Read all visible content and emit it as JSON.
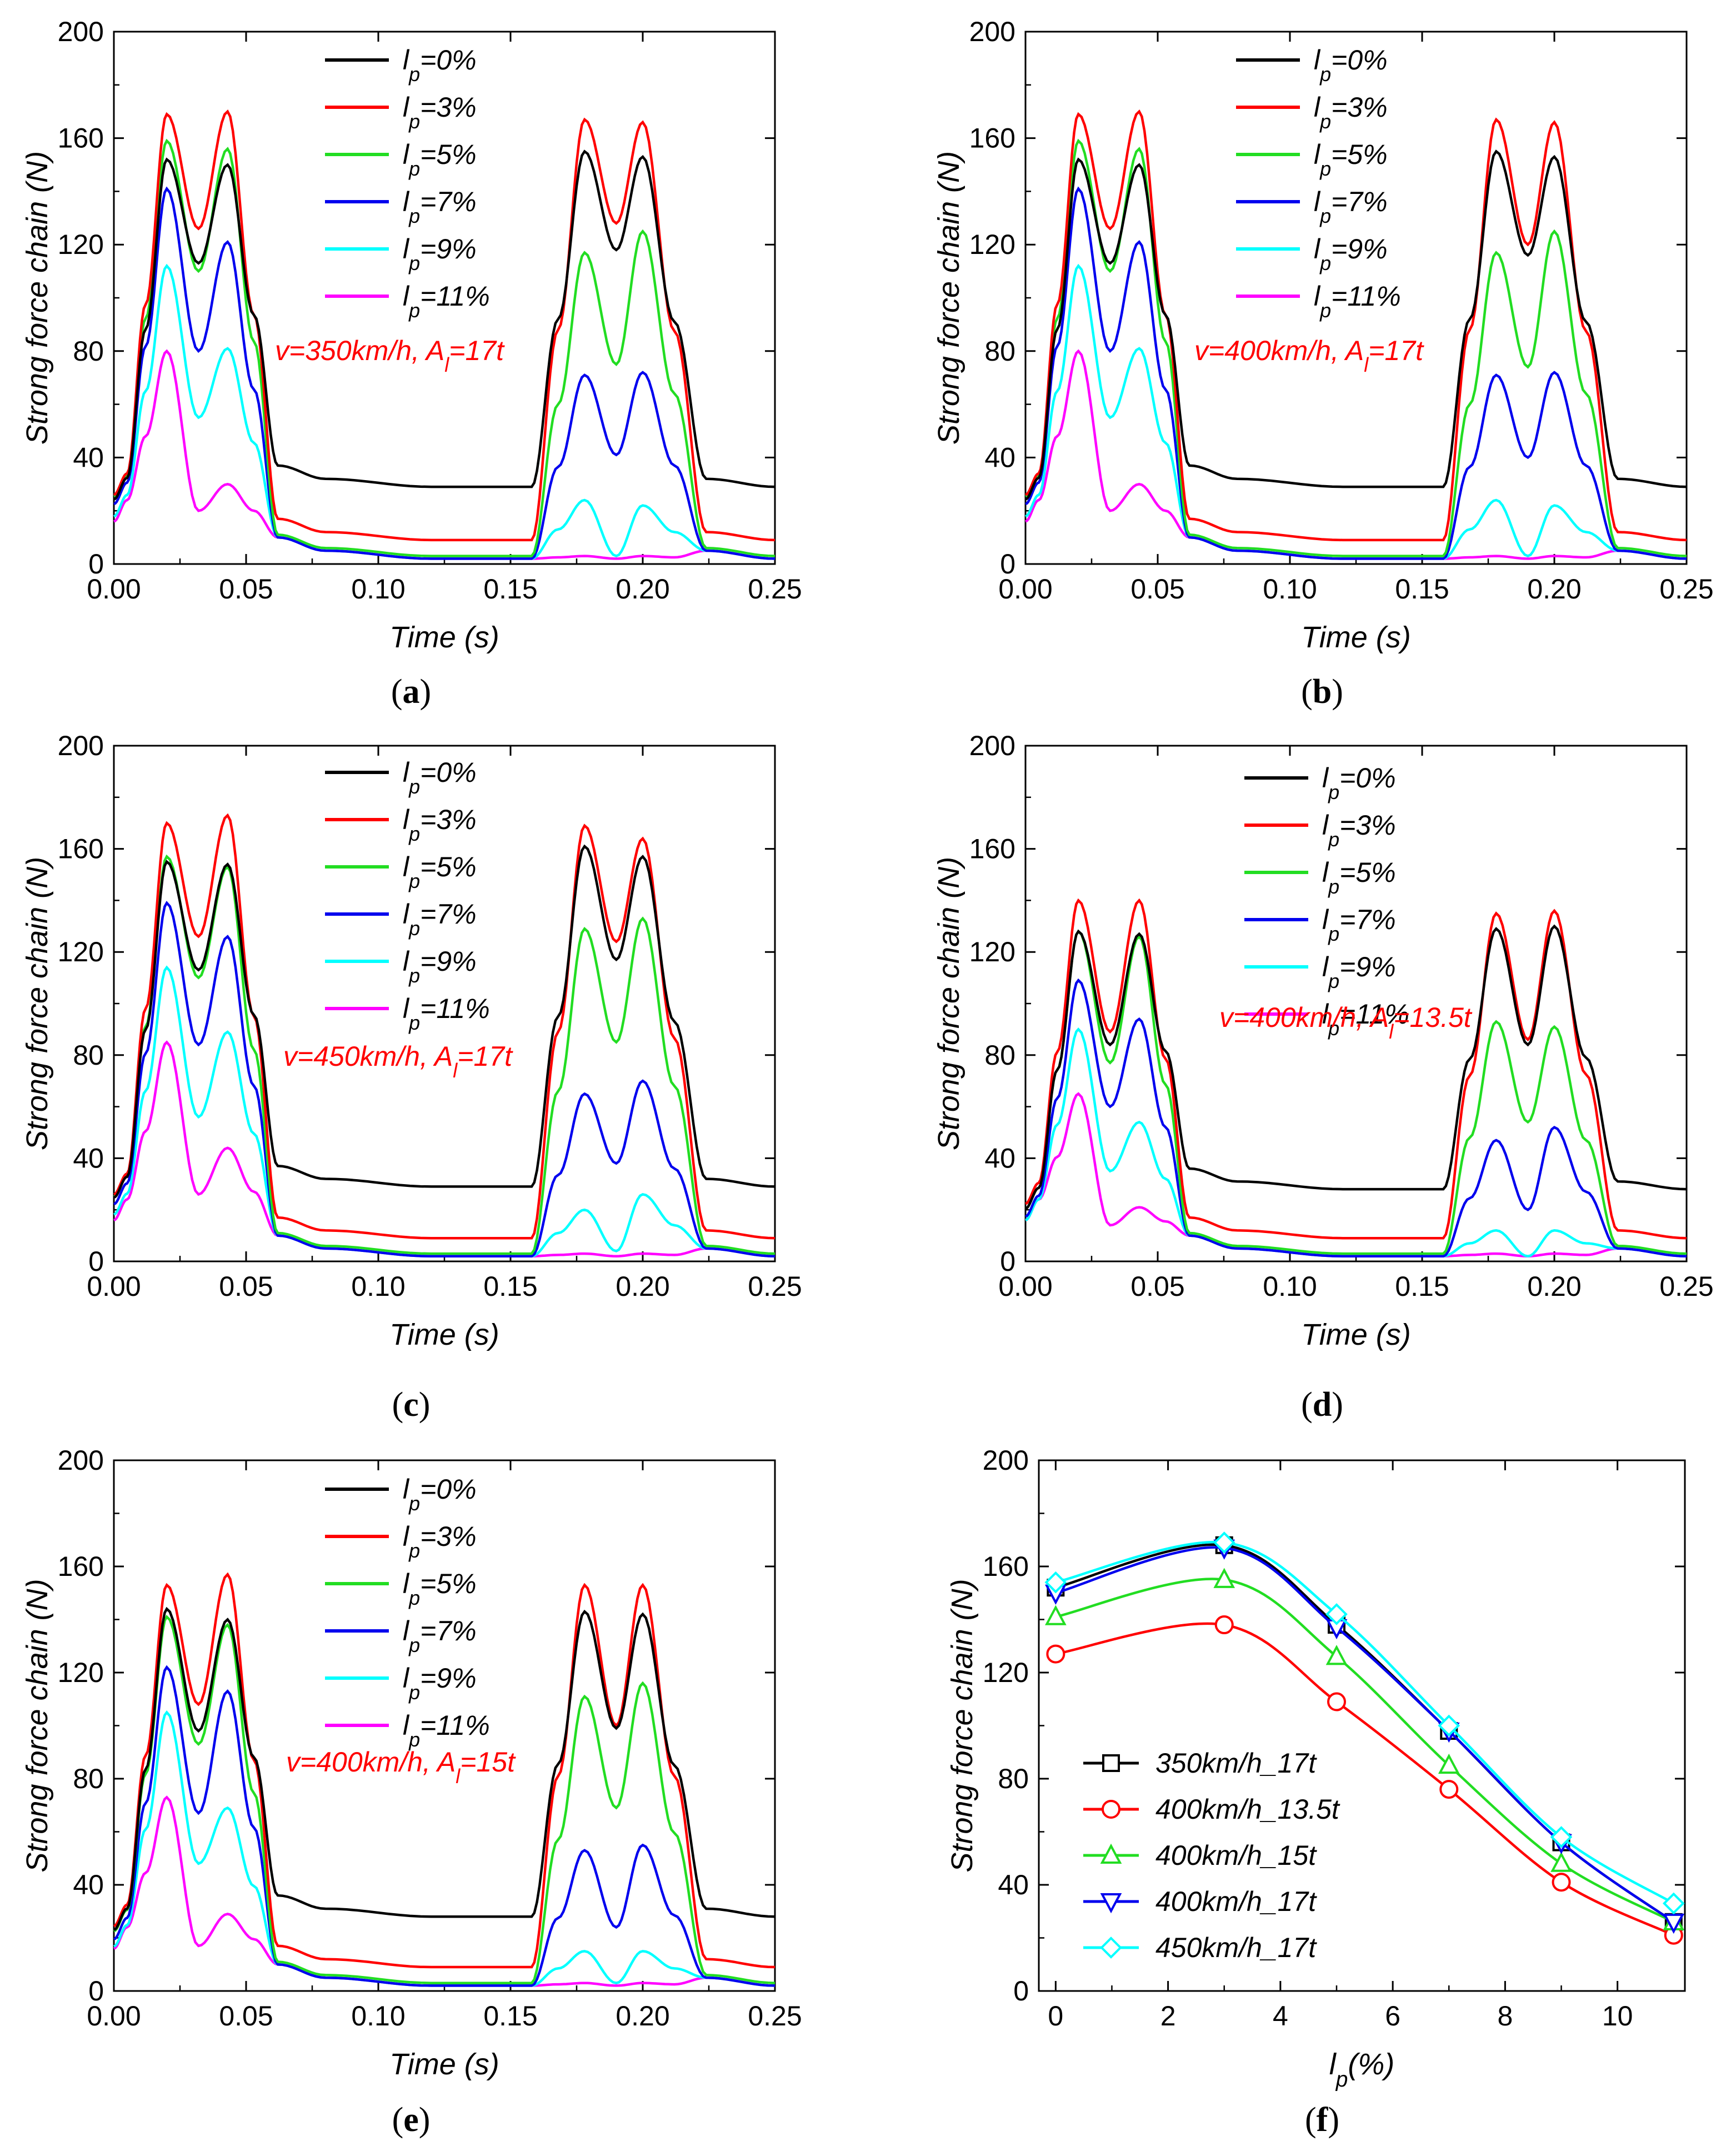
{
  "colors": {
    "lp0": "#000000",
    "lp3": "#ff0000",
    "lp5": "#22dd22",
    "lp7": "#0000ee",
    "lp9": "#00ffff",
    "lp11": "#ff00ff",
    "annotation": "#ff0000"
  },
  "chart_data": [
    {
      "id": "a",
      "panel_label": "(a)",
      "type": "line",
      "xlabel": "Time (s)",
      "ylabel": "Strong force chain (N)",
      "xlim": [
        0,
        0.25
      ],
      "ylim": [
        0,
        200
      ],
      "xticks": [
        "0.00",
        "0.05",
        "0.10",
        "0.15",
        "0.20",
        "0.25"
      ],
      "yticks": [
        "0",
        "40",
        "80",
        "120",
        "160",
        "200"
      ],
      "annotation": "v=350km/h, A_l=17t",
      "legend_position": "top-center",
      "series": [
        {
          "name": "l_p=0%",
          "peaks": [
            152,
            150,
            155,
            153
          ],
          "valleys": [
            113,
            118
          ],
          "tail": 29
        },
        {
          "name": "l_p=3%",
          "peaks": [
            169,
            170,
            167,
            166
          ],
          "valleys": [
            126,
            128
          ],
          "tail": 9
        },
        {
          "name": "l_p=5%",
          "peaks": [
            159,
            156,
            117,
            125
          ],
          "valleys": [
            110,
            75
          ],
          "tail": 3
        },
        {
          "name": "l_p=7%",
          "peaks": [
            141,
            121,
            71,
            72
          ],
          "valleys": [
            80,
            41
          ],
          "tail": 2
        },
        {
          "name": "l_p=9%",
          "peaks": [
            112,
            81,
            24,
            22
          ],
          "valleys": [
            55,
            3
          ],
          "tail": 2
        },
        {
          "name": "l_p=11%",
          "peaks": [
            80,
            30,
            3,
            3
          ],
          "valleys": [
            20,
            2
          ],
          "tail": 2
        }
      ]
    },
    {
      "id": "b",
      "panel_label": "(b)",
      "type": "line",
      "xlabel": "Time (s)",
      "ylabel": "Strong force chain (N)",
      "xlim": [
        0,
        0.25
      ],
      "ylim": [
        0,
        200
      ],
      "xticks": [
        "0.00",
        "0.05",
        "0.10",
        "0.15",
        "0.20",
        "0.25"
      ],
      "yticks": [
        "0",
        "40",
        "80",
        "120",
        "160",
        "200"
      ],
      "annotation": "v=400km/h, A_l=17t",
      "legend_position": "top-center",
      "series": [
        {
          "name": "l_p=0%",
          "peaks": [
            152,
            150,
            155,
            153
          ],
          "valleys": [
            113,
            116
          ],
          "tail": 29
        },
        {
          "name": "l_p=3%",
          "peaks": [
            169,
            170,
            167,
            166
          ],
          "valleys": [
            126,
            120
          ],
          "tail": 9
        },
        {
          "name": "l_p=5%",
          "peaks": [
            159,
            156,
            117,
            125
          ],
          "valleys": [
            110,
            74
          ],
          "tail": 3
        },
        {
          "name": "l_p=7%",
          "peaks": [
            141,
            121,
            71,
            72
          ],
          "valleys": [
            80,
            40
          ],
          "tail": 2
        },
        {
          "name": "l_p=9%",
          "peaks": [
            112,
            81,
            24,
            22
          ],
          "valleys": [
            55,
            3
          ],
          "tail": 2
        },
        {
          "name": "l_p=11%",
          "peaks": [
            80,
            30,
            3,
            3
          ],
          "valleys": [
            20,
            2
          ],
          "tail": 2
        }
      ]
    },
    {
      "id": "c",
      "panel_label": "(c)",
      "type": "line",
      "xlabel": "Time (s)",
      "ylabel": "Strong force chain (N)",
      "xlim": [
        0,
        0.25
      ],
      "ylim": [
        0,
        200
      ],
      "xticks": [
        "0.00",
        "0.05",
        "0.10",
        "0.15",
        "0.20",
        "0.25"
      ],
      "yticks": [
        "0",
        "40",
        "80",
        "120",
        "160",
        "200"
      ],
      "annotation": "v=450km/h, A_l=17t",
      "legend_position": "top-center",
      "series": [
        {
          "name": "l_p=0%",
          "peaks": [
            155,
            154,
            161,
            157
          ],
          "valleys": [
            113,
            117
          ],
          "tail": 29
        },
        {
          "name": "l_p=3%",
          "peaks": [
            170,
            173,
            169,
            164
          ],
          "valleys": [
            126,
            124
          ],
          "tail": 9
        },
        {
          "name": "l_p=5%",
          "peaks": [
            157,
            153,
            129,
            133
          ],
          "valleys": [
            110,
            85
          ],
          "tail": 3
        },
        {
          "name": "l_p=7%",
          "peaks": [
            139,
            126,
            65,
            70
          ],
          "valleys": [
            84,
            38
          ],
          "tail": 2
        },
        {
          "name": "l_p=9%",
          "peaks": [
            114,
            89,
            20,
            26
          ],
          "valleys": [
            56,
            4
          ],
          "tail": 2
        },
        {
          "name": "l_p=11%",
          "peaks": [
            85,
            44,
            3,
            3
          ],
          "valleys": [
            26,
            2
          ],
          "tail": 2
        }
      ]
    },
    {
      "id": "d",
      "panel_label": "(d)",
      "type": "line",
      "xlabel": "Time (s)",
      "ylabel": "Strong force chain (N)",
      "xlim": [
        0,
        0.25
      ],
      "ylim": [
        0,
        200
      ],
      "xticks": [
        "0.00",
        "0.05",
        "0.10",
        "0.15",
        "0.20",
        "0.25"
      ],
      "yticks": [
        "0",
        "40",
        "80",
        "120",
        "160",
        "200"
      ],
      "annotation": "v=400km/h, A_l=13.5t",
      "legend_position": "top-center",
      "series": [
        {
          "name": "l_p=0%",
          "peaks": [
            128,
            127,
            129,
            130
          ],
          "valleys": [
            84,
            84
          ],
          "tail": 28
        },
        {
          "name": "l_p=3%",
          "peaks": [
            140,
            140,
            135,
            136
          ],
          "valleys": [
            89,
            86
          ],
          "tail": 9
        },
        {
          "name": "l_p=5%",
          "peaks": [
            128,
            126,
            93,
            91
          ],
          "valleys": [
            77,
            54
          ],
          "tail": 3
        },
        {
          "name": "l_p=7%",
          "peaks": [
            109,
            94,
            47,
            52
          ],
          "valleys": [
            60,
            20
          ],
          "tail": 2
        },
        {
          "name": "l_p=9%",
          "peaks": [
            90,
            54,
            12,
            12
          ],
          "valleys": [
            35,
            2
          ],
          "tail": 2
        },
        {
          "name": "l_p=11%",
          "peaks": [
            65,
            21,
            3,
            3
          ],
          "valleys": [
            14,
            2
          ],
          "tail": 2
        }
      ]
    },
    {
      "id": "e",
      "panel_label": "(e)",
      "type": "line",
      "xlabel": "Time (s)",
      "ylabel": "Strong force chain (N)",
      "xlim": [
        0,
        0.25
      ],
      "ylim": [
        0,
        200
      ],
      "xticks": [
        "0.00",
        "0.05",
        "0.10",
        "0.15",
        "0.20",
        "0.25"
      ],
      "yticks": [
        "0",
        "40",
        "80",
        "120",
        "160",
        "200"
      ],
      "annotation": "v=400km/h, A_l=15t",
      "legend_position": "top-center",
      "series": [
        {
          "name": "l_p=0%",
          "peaks": [
            144,
            140,
            143,
            142
          ],
          "valleys": [
            98,
            99
          ],
          "tail": 28
        },
        {
          "name": "l_p=3%",
          "peaks": [
            153,
            157,
            153,
            153
          ],
          "valleys": [
            108,
            100
          ],
          "tail": 9
        },
        {
          "name": "l_p=5%",
          "peaks": [
            141,
            138,
            111,
            116
          ],
          "valleys": [
            93,
            69
          ],
          "tail": 3
        },
        {
          "name": "l_p=7%",
          "peaks": [
            122,
            113,
            53,
            55
          ],
          "valleys": [
            67,
            24
          ],
          "tail": 2
        },
        {
          "name": "l_p=9%",
          "peaks": [
            105,
            69,
            15,
            15
          ],
          "valleys": [
            48,
            3
          ],
          "tail": 2
        },
        {
          "name": "l_p=11%",
          "peaks": [
            73,
            29,
            3,
            3
          ],
          "valleys": [
            17,
            2
          ],
          "tail": 2
        }
      ]
    },
    {
      "id": "f",
      "panel_label": "(f)",
      "type": "line",
      "xlabel": "l_p(%)",
      "ylabel": "Strong force chain (N)",
      "xlim": [
        -0.3,
        11.2
      ],
      "ylim": [
        0,
        200
      ],
      "xticks": [
        "0",
        "2",
        "4",
        "6",
        "8",
        "10"
      ],
      "yticks": [
        "0",
        "40",
        "80",
        "120",
        "160",
        "200"
      ],
      "legend_position": "bottom-left",
      "x": [
        0,
        3,
        5,
        7,
        9,
        11
      ],
      "series": [
        {
          "name": "350km/h_17t",
          "marker": "square",
          "color": "#000000",
          "values": [
            152,
            168,
            138,
            98,
            56,
            26
          ]
        },
        {
          "name": "400km/h_13.5t",
          "marker": "circle",
          "color": "#ff0000",
          "values": [
            127,
            138,
            109,
            76,
            41,
            21
          ]
        },
        {
          "name": "400km/h_15t",
          "marker": "triangle-up",
          "color": "#22dd22",
          "values": [
            141,
            155,
            126,
            85,
            48,
            26
          ]
        },
        {
          "name": "400km/h_17t",
          "marker": "triangle-down",
          "color": "#0000ee",
          "values": [
            150,
            167,
            137,
            98,
            56,
            26
          ]
        },
        {
          "name": "450km/h_17t",
          "marker": "diamond",
          "color": "#00ffff",
          "values": [
            154,
            169,
            142,
            100,
            58,
            33
          ]
        }
      ]
    }
  ]
}
